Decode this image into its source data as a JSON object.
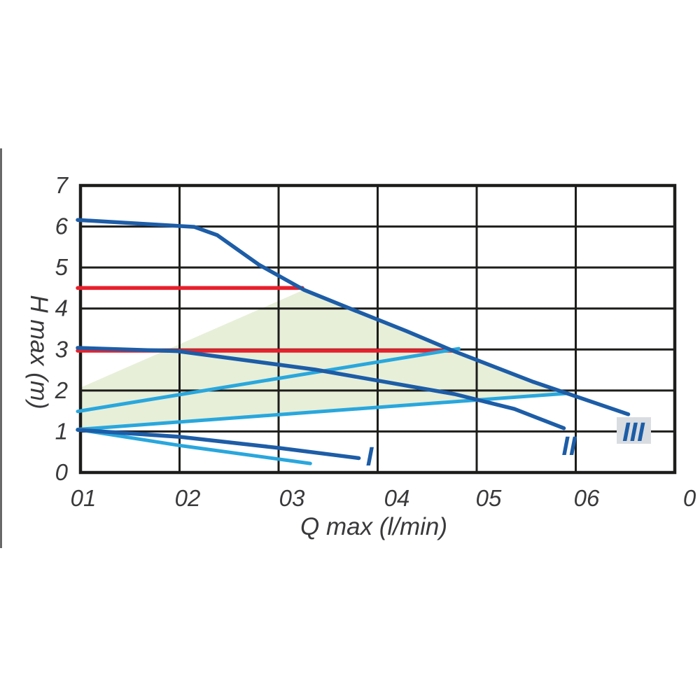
{
  "colors": {
    "dark_blue": "#1d5da7",
    "cyan": "#29a7dd",
    "red": "#e8202c",
    "pale_green": "#e7efd8",
    "grid": "#1d1d1b",
    "text": "#39393b",
    "label_box": "#d9dde1",
    "page_edge": "#4f4f4f"
  },
  "chart_data": {
    "type": "line",
    "title": "",
    "xlabel": "Q max (l/min)",
    "ylabel": "H max (m)",
    "x_tick_labels": [
      "01",
      "02",
      "03",
      "04",
      "05",
      "06",
      "0"
    ],
    "x_tick_units": [
      0,
      1,
      2,
      3,
      4,
      5,
      6
    ],
    "y_tick_labels": [
      "7",
      "6",
      "5",
      "4",
      "3",
      "2",
      "1",
      "0"
    ],
    "y_tick_values": [
      7,
      6,
      5,
      4,
      3,
      2,
      1,
      0
    ],
    "xlim_units": [
      0,
      6
    ],
    "ylim": [
      0,
      7
    ],
    "grid": true,
    "legend_position": "labels-on-curves",
    "shaded_region": {
      "name": "operating-range-area",
      "color_key": "pale_green",
      "points": [
        [
          0,
          2.07
        ],
        [
          2.26,
          4.46
        ],
        [
          3.77,
          2.97
        ],
        [
          4.91,
          1.93
        ],
        [
          0,
          1.06
        ]
      ]
    },
    "series": [
      {
        "name": "limit-line-upper",
        "label": "",
        "color_key": "red",
        "width": 5.5,
        "points": [
          [
            0,
            4.5
          ],
          [
            2.24,
            4.5
          ]
        ]
      },
      {
        "name": "limit-line-lower",
        "label": "",
        "color_key": "red",
        "width": 5.5,
        "points": [
          [
            0,
            2.97
          ],
          [
            3.79,
            2.97
          ]
        ]
      },
      {
        "name": "aux-rising-upper",
        "label": "",
        "color_key": "cyan",
        "width": 5,
        "points": [
          [
            0,
            1.49
          ],
          [
            3.82,
            3.02
          ]
        ]
      },
      {
        "name": "aux-rising-lower",
        "label": "",
        "color_key": "cyan",
        "width": 5,
        "points": [
          [
            0,
            1.05
          ],
          [
            4.91,
            1.93
          ]
        ]
      },
      {
        "name": "aux-falling",
        "label": "",
        "color_key": "cyan",
        "width": 5,
        "points": [
          [
            0,
            1.05
          ],
          [
            1.0,
            0.66
          ],
          [
            2.32,
            0.22
          ]
        ]
      },
      {
        "name": "curve-I",
        "label": "I",
        "color_key": "dark_blue",
        "width": 5.5,
        "points": [
          [
            0,
            1.04
          ],
          [
            1.0,
            0.87
          ],
          [
            2.0,
            0.6
          ],
          [
            2.81,
            0.35
          ]
        ]
      },
      {
        "name": "curve-II",
        "label": "II",
        "color_key": "dark_blue",
        "width": 5.5,
        "points": [
          [
            0,
            3.04
          ],
          [
            0.98,
            2.96
          ],
          [
            2.37,
            2.51
          ],
          [
            3.78,
            1.91
          ],
          [
            4.38,
            1.55
          ],
          [
            4.88,
            1.08
          ]
        ]
      },
      {
        "name": "curve-III",
        "label": "III",
        "color_key": "dark_blue",
        "width": 5.5,
        "points": [
          [
            0,
            6.16
          ],
          [
            1.15,
            5.99
          ],
          [
            1.38,
            5.79
          ],
          [
            1.8,
            5.07
          ],
          [
            2.26,
            4.45
          ],
          [
            2.72,
            4.0
          ],
          [
            3.29,
            3.45
          ],
          [
            3.77,
            2.96
          ],
          [
            4.56,
            2.22
          ],
          [
            5.53,
            1.42
          ]
        ]
      }
    ]
  }
}
